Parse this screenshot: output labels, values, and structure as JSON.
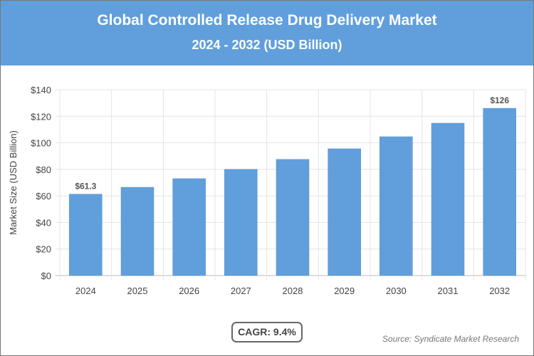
{
  "chart_data": {
    "type": "bar",
    "title": "Global Controlled Release Drug Delivery Market",
    "subtitle": "2024 - 2032 (USD Billion)",
    "ylabel": "Market Size (USD Billion)",
    "xlabel": "",
    "categories": [
      "2024",
      "2025",
      "2026",
      "2027",
      "2028",
      "2029",
      "2030",
      "2031",
      "2032"
    ],
    "values": [
      61.3,
      66.5,
      73,
      80,
      87.5,
      95.5,
      104.6,
      114.8,
      126
    ],
    "data_labels": {
      "0": "$61.3",
      "8": "$126"
    },
    "ylim": [
      0,
      140
    ],
    "yticks": [
      "$0",
      "$20",
      "$40",
      "$60",
      "$80",
      "$100",
      "$120",
      "$140"
    ],
    "grid": true,
    "bar_color": "#609fdc"
  },
  "cagr": "CAGR: 9.4%",
  "source": "Source: Syndicate Market Research"
}
